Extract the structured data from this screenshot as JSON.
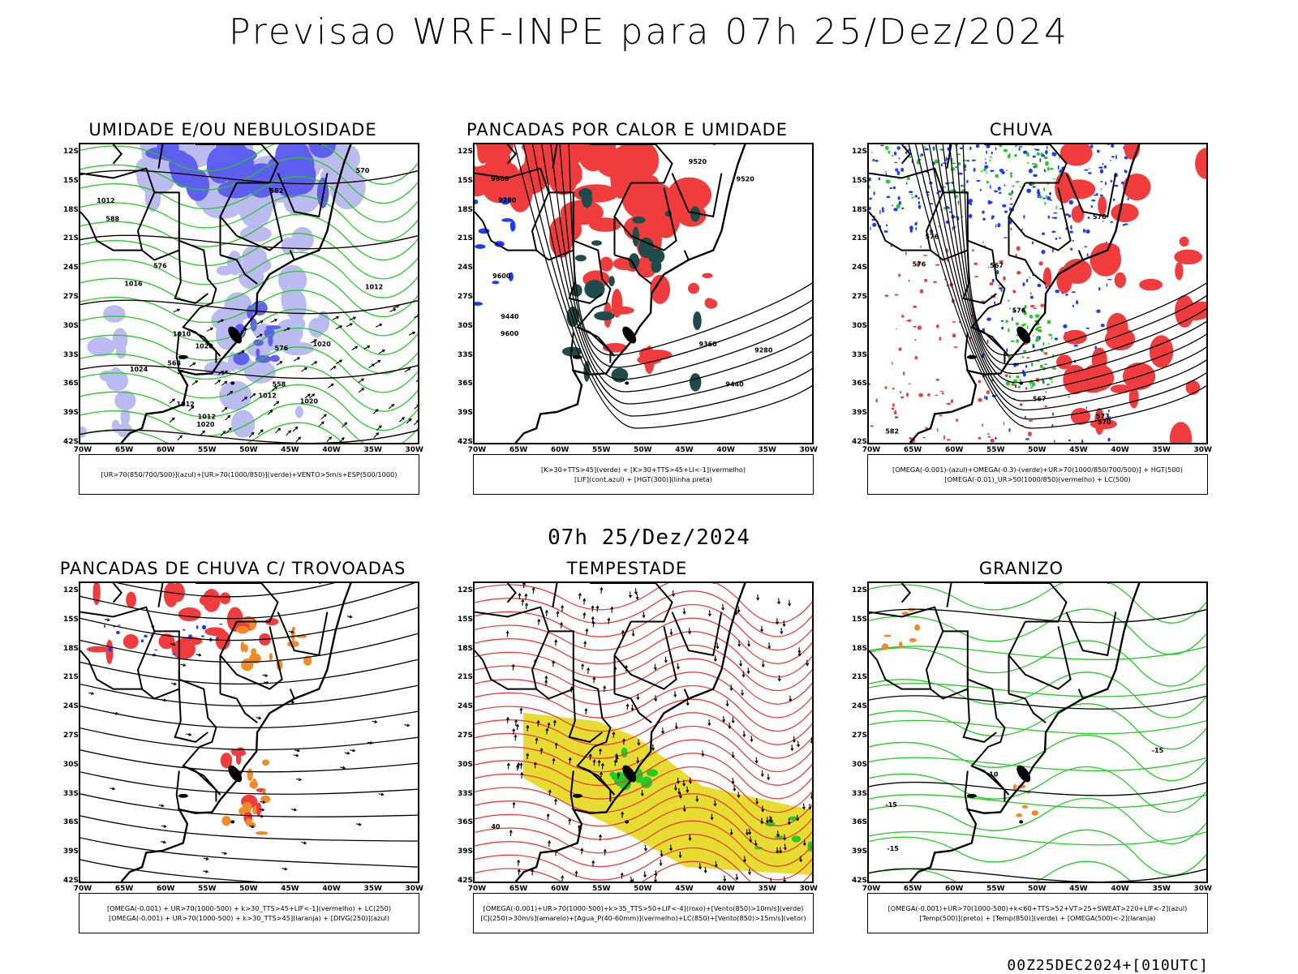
{
  "header": {
    "title": "Previsao WRF-INPE  para 07h 25/Dez/2024",
    "subtitle": "07h 25/Dez/2024",
    "footer": "00Z25DEC2024+[010UTC]"
  },
  "axes": {
    "lat_labels": [
      "12S",
      "15S",
      "18S",
      "21S",
      "24S",
      "27S",
      "30S",
      "33S",
      "36S",
      "39S",
      "42S"
    ],
    "lon_labels": [
      "70W",
      "65W",
      "60W",
      "55W",
      "50W",
      "45W",
      "40W",
      "35W",
      "30W"
    ]
  },
  "colors": {
    "blue": "#1a3cff",
    "light_blue": "#b4b4f0",
    "green": "#22cc22",
    "red": "#f03c3c",
    "dark_teal": "#1e4b4b",
    "orange": "#f08c28",
    "yellow": "#e6dc32",
    "black": "#000000"
  },
  "panels": [
    {
      "title": "UMIDADE E/OU NEBULOSIDADE",
      "legend": [
        "[UR>70(850/700/500)](azul)+[UR>70(1000/850)](verde)+VENTO>5m/s+ESP(500/1000)"
      ],
      "labels": [
        "1012",
        "1012",
        "1012",
        "1020",
        "1012",
        "1012",
        "1016",
        "1020",
        "1024",
        "1020",
        "1020",
        "570",
        "576",
        "576",
        "582",
        "588",
        "564",
        "558",
        "1010"
      ]
    },
    {
      "title": "PANCADAS POR CALOR E UMIDADE",
      "legend": [
        "[K>30+TTS>45](verde) + [K>30+TTS>45+LI<-1](vermelho)",
        "[LIF](cont.azul) + [HGT(300)](linha preta)"
      ],
      "labels": [
        "9600",
        "9520",
        "9600",
        "9600",
        "9520",
        "9440",
        "9280",
        "9360",
        "9440",
        "9280"
      ]
    },
    {
      "title": "CHUVA",
      "legend": [
        "[OMEGA(-0.001)-(azul)+OMEGA(-0.3)-(verde)+UR>70(1000/850/700/500)] + HGT(500)",
        "[OMEGA(-0.01)_UR>50(1000/850)(vermelho) + LC(500)"
      ],
      "labels": [
        "582",
        "576",
        "570",
        "567",
        "576",
        "576",
        "573",
        "576",
        "567"
      ]
    },
    {
      "title": "PANCADAS DE CHUVA C/ TROVOADAS",
      "legend": [
        "[OMEGA(-0.001) + UR>70(1000-500) + k>30_TTS>45+LIF<-1](vermelho) + LC(250)",
        "[OMEGA(-0.001) + UR>70(1000-500) + k>30_TTS>45](laranja) + [DIVG(250)](azul)"
      ],
      "labels": []
    },
    {
      "title": "TEMPESTADE",
      "legend": [
        "[OMEGA(-0.001)+UR>70(1000-500)+k>35_TTS>50+LIF<-4](roxo)+[Vento(850)>10m/s](verde)",
        "[CJ(250)>30m/s](amarelo)+[Agua_P(40-60mm)](vermelho)+LC(850)+[Vento(850)>15m/s](vetor)"
      ],
      "labels": [
        "40"
      ]
    },
    {
      "title": "GRANIZO",
      "legend": [
        "[OMEGA(-0.001)+UR>70(1000-500)+k<60+TTS>52+VT>25+SWEAT>220+LIF<-2](azul)",
        "[Temp(500)](preto) + [Temp(850)](verde) + [OMEGA(500)<-2](laranja)"
      ],
      "labels": [
        "-15",
        "-15",
        "-15",
        "-10"
      ]
    }
  ]
}
